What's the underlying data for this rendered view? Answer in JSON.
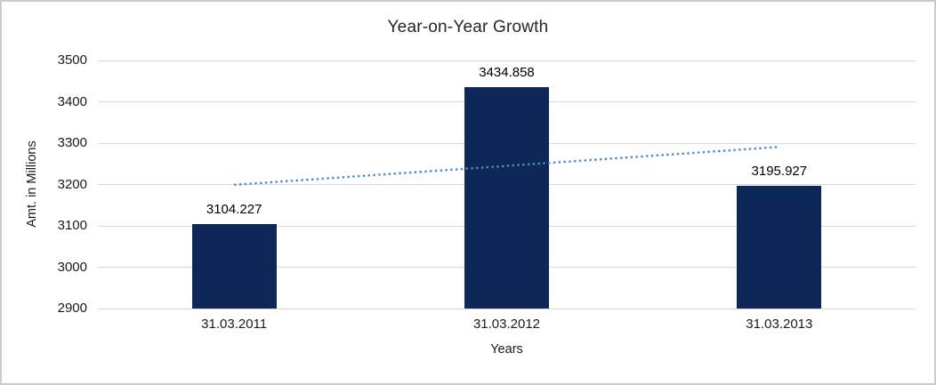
{
  "chart_data": {
    "type": "bar",
    "title": "Year-on-Year Growth",
    "xlabel": "Years",
    "ylabel": "Amt. in Millions",
    "categories": [
      "31.03.2011",
      "31.03.2012",
      "31.03.2013"
    ],
    "values": [
      3104.227,
      3434.858,
      3195.927
    ],
    "data_labels": [
      "3104.227",
      "3434.858",
      "3195.927"
    ],
    "ylim": [
      2900,
      3500
    ],
    "yticks": [
      2900,
      3000,
      3100,
      3200,
      3300,
      3400,
      3500
    ],
    "grid": true,
    "legend": "none",
    "colors": {
      "bar": "#0d2759",
      "trendline": "#5089c6",
      "gridline": "#d9d9d9",
      "text": "#1a1a1a",
      "frame_border": "#cccccc"
    },
    "trendline": {
      "style": "dotted-linear",
      "start_value": 3199.2,
      "end_value": 3290.9
    }
  }
}
